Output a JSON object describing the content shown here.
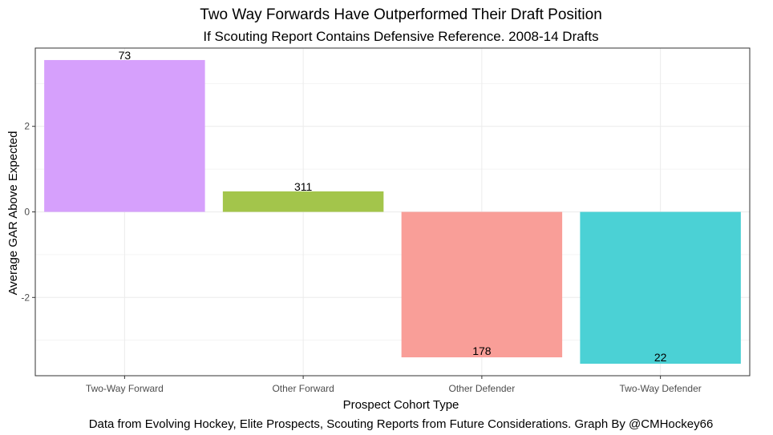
{
  "chart_data": {
    "type": "bar",
    "title": "Two Way Forwards Have Outperformed Their Draft Position",
    "subtitle": "If Scouting Report Contains Defensive Reference. 2008-14 Drafts",
    "xlabel": "Prospect Cohort Type",
    "ylabel": "Average GAR Above Expected",
    "caption": "Data from Evolving Hockey, Elite Prospects, Scouting Reports from Future Considerations. Graph By @CMHockey66",
    "categories": [
      "Two-Way Forward",
      "Other Forward",
      "Other Defender",
      "Two-Way Defender"
    ],
    "values": [
      3.55,
      0.48,
      -3.4,
      -3.55
    ],
    "labels": [
      "73",
      "311",
      "178",
      "22"
    ],
    "colors": [
      "#d6a0fc",
      "#a3c54b",
      "#f99e98",
      "#4bd1d5"
    ],
    "ylim": [
      -3.83,
      3.83
    ],
    "yticks": [
      -2,
      0,
      2
    ],
    "grid": true,
    "legend": "none"
  }
}
